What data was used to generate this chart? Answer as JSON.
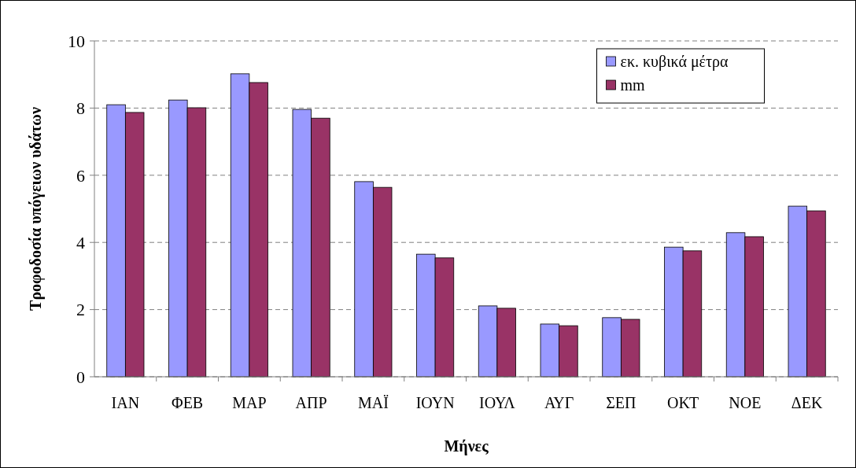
{
  "chart_data": {
    "type": "bar",
    "xlabel": "Μήνες",
    "ylabel": "Τροφοδοσία υπόγειων υδάτων",
    "categories": [
      "ΙΑΝ",
      "ΦΕΒ",
      "ΜΑΡ",
      "ΑΠΡ",
      "ΜΑΪ",
      "ΙΟΥΝ",
      "ΙΟΥΛ",
      "ΑΥΓ",
      "ΣΕΠ",
      "ΟΚΤ",
      "ΝΟΕ",
      "ΔΕΚ"
    ],
    "series": [
      {
        "name": "εκ. κυβικά μέτρα",
        "color": "#9999ff",
        "values": [
          8.1,
          8.24,
          9.02,
          7.96,
          5.81,
          3.65,
          2.11,
          1.57,
          1.76,
          3.86,
          4.29,
          5.08
        ]
      },
      {
        "name": "mm",
        "color": "#993366",
        "values": [
          7.87,
          8.01,
          8.76,
          7.7,
          5.64,
          3.54,
          2.04,
          1.52,
          1.71,
          3.75,
          4.17,
          4.94
        ]
      }
    ],
    "ylim": [
      0,
      10
    ],
    "yticks": [
      0,
      2,
      4,
      6,
      8,
      10
    ],
    "grid": "y",
    "legend": "top right"
  }
}
